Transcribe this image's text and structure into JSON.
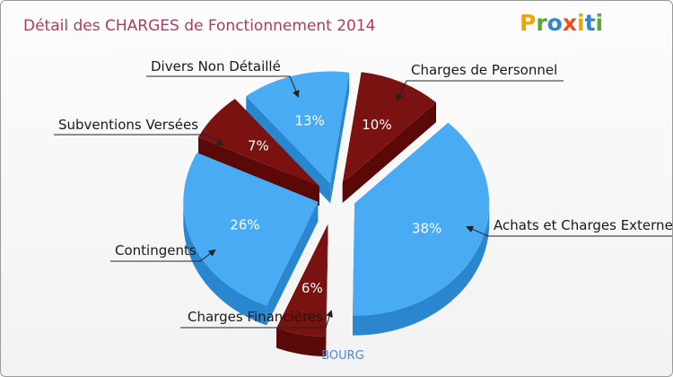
{
  "chart_data": {
    "type": "pie",
    "title": "Détail des CHARGES de Fonctionnement 2014",
    "location": "BOURG",
    "slices": [
      {
        "name": "Charges de Personnel",
        "value": 10,
        "label": "10%",
        "color": "dark-red"
      },
      {
        "name": "Achats et Charges Externes",
        "value": 38,
        "label": "38%",
        "color": "blue"
      },
      {
        "name": "Charges Financières",
        "value": 6,
        "label": "6%",
        "color": "dark-red"
      },
      {
        "name": "Contingents",
        "value": 26,
        "label": "26%",
        "color": "blue"
      },
      {
        "name": "Subventions Versées",
        "value": 7,
        "label": "7%",
        "color": "dark-red"
      },
      {
        "name": "Divers Non Détaillé",
        "value": 13,
        "label": "13%",
        "color": "blue"
      }
    ]
  },
  "logo": {
    "letters": [
      "P",
      "r",
      "o",
      "x",
      "i",
      "t",
      "i"
    ],
    "colors": [
      "#f0a500",
      "#5aa82d",
      "#2f86d1",
      "#e8501e",
      "#f0a500",
      "#2f86d1",
      "#5aa82d"
    ]
  },
  "colors": {
    "blue_top": "#4aabf5",
    "blue_side": "#2a86cf",
    "red_top": "#7a1212",
    "red_side": "#5a0808",
    "title": "#b03a62",
    "city": "#4d86d6"
  }
}
